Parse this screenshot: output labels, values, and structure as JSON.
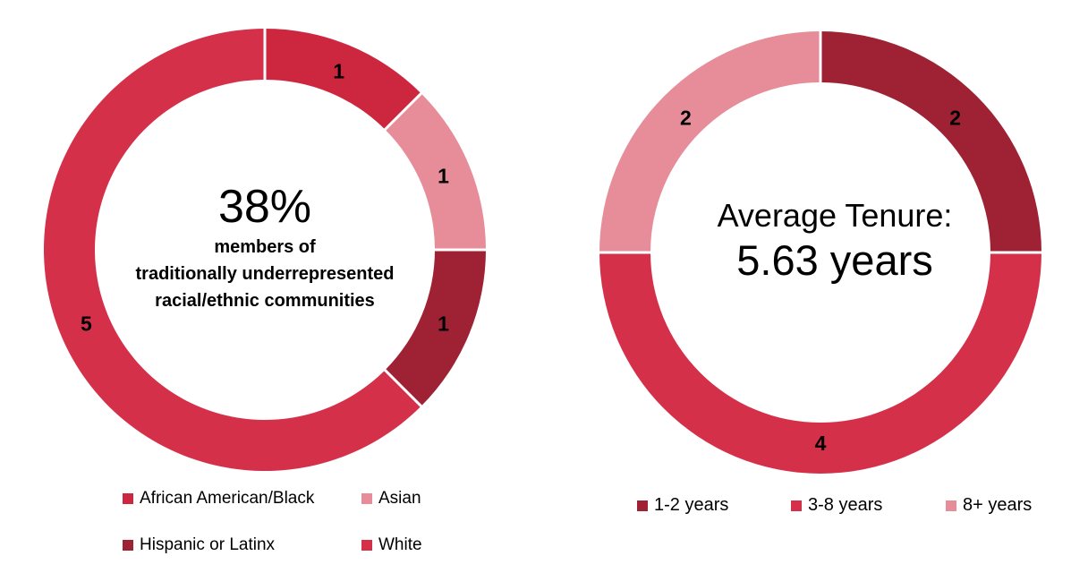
{
  "page": {
    "background": "#ffffff"
  },
  "colors": {
    "crimson": "#cd2740",
    "pink": "#e68d99",
    "maroon": "#9e2134",
    "red": "#d5304a",
    "separator": "#ffffff",
    "label_text": "#000000"
  },
  "chart_data": [
    {
      "type": "donut",
      "name": "race-ethnicity-donut",
      "categories": [
        "African American/Black",
        "Asian",
        "Hispanic or Latinx",
        "White"
      ],
      "values": [
        1,
        1,
        1,
        5
      ],
      "colors": [
        "#cd2740",
        "#e68d99",
        "#9e2134",
        "#d5304a"
      ],
      "segment_labels": [
        "1",
        "1",
        "1",
        "5"
      ],
      "start_angle_deg": 0,
      "direction": "clockwise",
      "total": 8,
      "center_text": {
        "headline": "38%",
        "lines": [
          "members of",
          "traditionally underrepresented",
          "racial/ethnic communities"
        ]
      },
      "legend_position": "bottom",
      "legend_layout": "2x2"
    },
    {
      "type": "donut",
      "name": "tenure-donut",
      "categories": [
        "1-2 years",
        "3-8 years",
        "8+ years"
      ],
      "values": [
        2,
        4,
        2
      ],
      "colors": [
        "#9e2134",
        "#d5304a",
        "#e68d99"
      ],
      "segment_labels": [
        "2",
        "4",
        "2"
      ],
      "start_angle_deg": 0,
      "direction": "clockwise",
      "total": 8,
      "center_text": {
        "line1": "Average Tenure:",
        "line2": "5.63 years"
      },
      "legend_position": "bottom",
      "legend_layout": "1x3"
    }
  ]
}
